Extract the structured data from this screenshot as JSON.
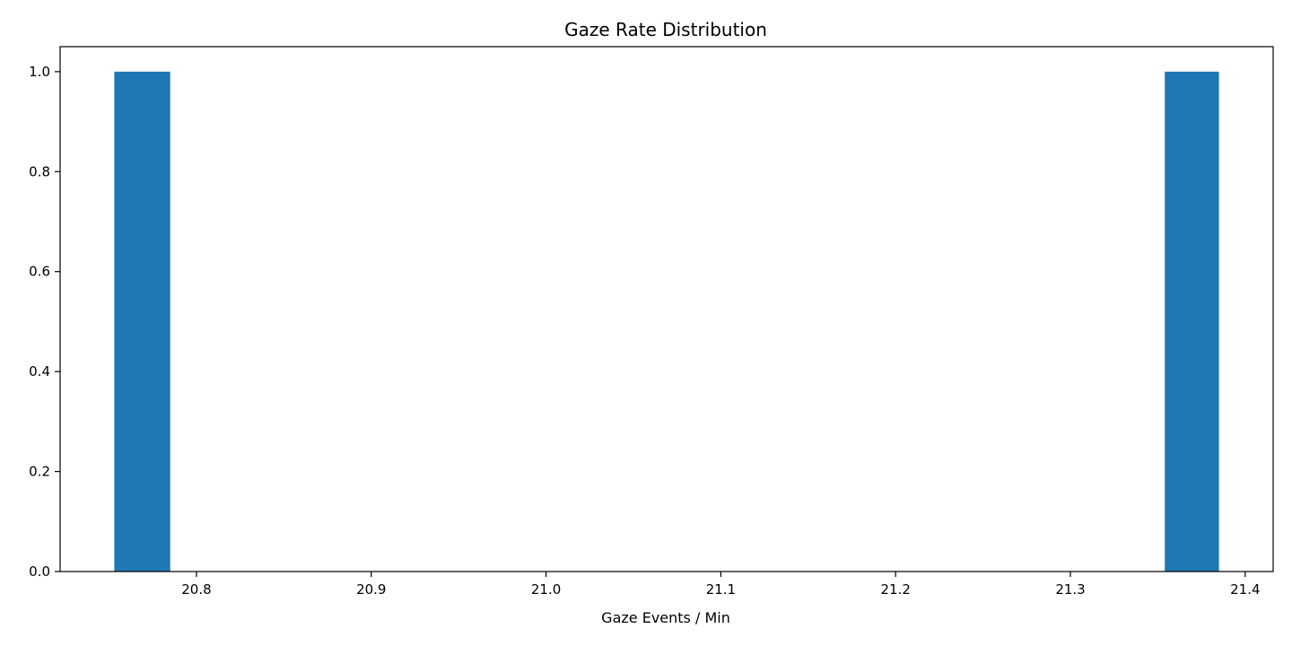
{
  "chart_data": {
    "type": "histogram",
    "title": "Gaze Rate Distribution",
    "xlabel": "Gaze Events / Min",
    "ylabel": "",
    "xlim": [
      20.722,
      21.416
    ],
    "ylim": [
      0,
      1.05
    ],
    "bar_color": "#1f77b4",
    "bars": [
      {
        "x0": 20.753,
        "x1": 20.785,
        "value": 1.0
      },
      {
        "x0": 21.354,
        "x1": 21.385,
        "value": 1.0
      }
    ],
    "xticks": [
      {
        "value": 20.8,
        "label": "20.8"
      },
      {
        "value": 20.9,
        "label": "20.9"
      },
      {
        "value": 21.0,
        "label": "21.0"
      },
      {
        "value": 21.1,
        "label": "21.1"
      },
      {
        "value": 21.2,
        "label": "21.2"
      },
      {
        "value": 21.3,
        "label": "21.3"
      },
      {
        "value": 21.4,
        "label": "21.4"
      }
    ],
    "yticks": [
      {
        "value": 0.0,
        "label": "0.0"
      },
      {
        "value": 0.2,
        "label": "0.2"
      },
      {
        "value": 0.4,
        "label": "0.4"
      },
      {
        "value": 0.6,
        "label": "0.6"
      },
      {
        "value": 0.8,
        "label": "0.8"
      },
      {
        "value": 1.0,
        "label": "1.0"
      }
    ],
    "grid": false,
    "legend": "none"
  }
}
